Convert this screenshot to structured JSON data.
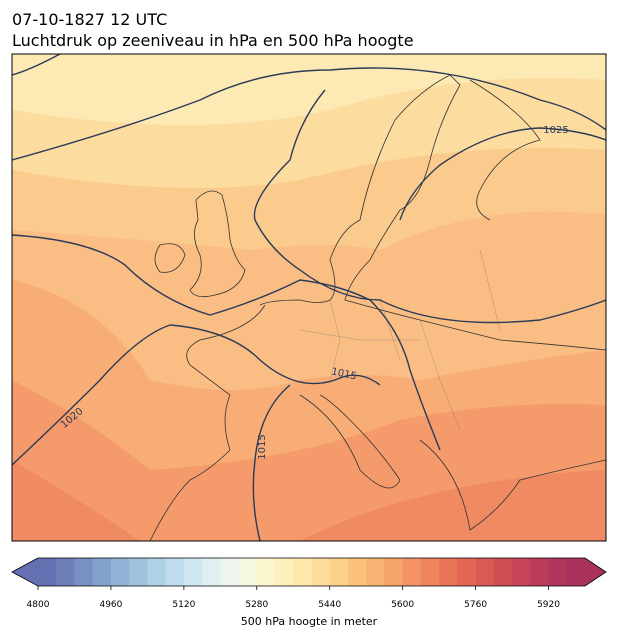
{
  "header": {
    "date": "07-10-1827 12 UTC",
    "title": "Luchtdruk op zeeniveau in hPa en 500 hPa hoogte"
  },
  "map": {
    "contour_labels": [
      1025,
      1015,
      1020,
      1015
    ]
  },
  "colorbar": {
    "lim": [
      4800,
      6000
    ],
    "ticks": [
      4800,
      4960,
      5120,
      5280,
      5440,
      5600,
      5760,
      5920
    ],
    "colors": [
      "#6470b2",
      "#6f7fba",
      "#7a90c3",
      "#85a2cc",
      "#91b3d5",
      "#9fc3de",
      "#aed1e6",
      "#bfddec",
      "#cfe7f1",
      "#dfeff3",
      "#ecf5ee",
      "#f6f8e2",
      "#fcf6cf",
      "#fef0bc",
      "#fee7aa",
      "#fddc99",
      "#fcd08b",
      "#fbc27e",
      "#f9b374",
      "#f7a46b",
      "#f49464",
      "#ef845e",
      "#e97559",
      "#e26756",
      "#d95a55",
      "#cf4e55",
      "#c54457",
      "#ba3c59",
      "#b0365b",
      "#a8325c"
    ],
    "label": "500 hPa hoogte in meter"
  }
}
